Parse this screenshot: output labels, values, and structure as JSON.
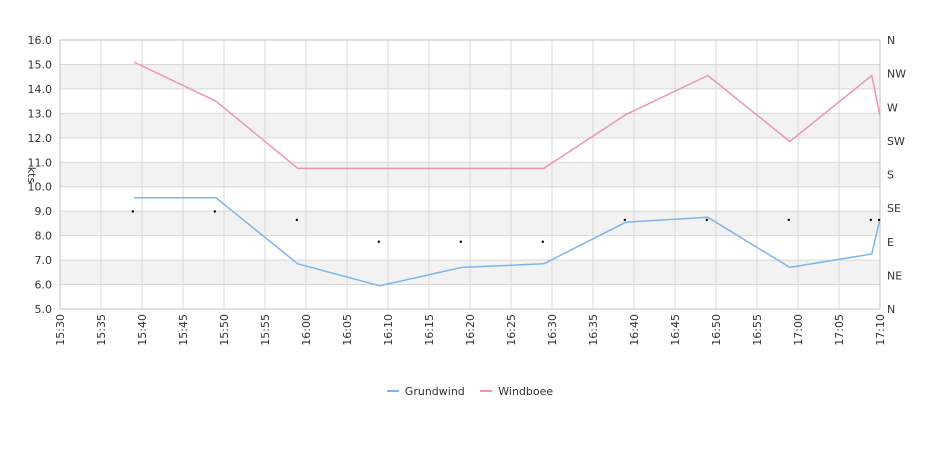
{
  "chart_data": {
    "type": "line",
    "x_ticks": [
      "15:30",
      "15:35",
      "15:40",
      "15:45",
      "15:50",
      "15:55",
      "16:00",
      "16:05",
      "16:10",
      "16:15",
      "16:20",
      "16:25",
      "16:30",
      "16:35",
      "16:40",
      "16:45",
      "16:50",
      "16:55",
      "17:00",
      "17:05",
      "17:10"
    ],
    "ylabel": "kts",
    "ylim": [
      5.0,
      16.0
    ],
    "y_ticks": [
      "5.0",
      "6.0",
      "7.0",
      "8.0",
      "9.0",
      "10.0",
      "11.0",
      "12.0",
      "13.0",
      "14.0",
      "15.0",
      "16.0"
    ],
    "y2_ticks": [
      "N",
      "NE",
      "E",
      "SE",
      "S",
      "SW",
      "W",
      "NW",
      "N"
    ],
    "grid": true,
    "legend_position": "bottom",
    "series": [
      {
        "name": "Grundwind",
        "color": "#7cb5ec",
        "points": [
          {
            "x": "15:39",
            "y": 9.55
          },
          {
            "x": "15:49",
            "y": 9.55
          },
          {
            "x": "15:59",
            "y": 6.85
          },
          {
            "x": "16:09",
            "y": 5.95
          },
          {
            "x": "16:19",
            "y": 6.7
          },
          {
            "x": "16:29",
            "y": 6.85
          },
          {
            "x": "16:39",
            "y": 8.55
          },
          {
            "x": "16:49",
            "y": 8.75
          },
          {
            "x": "16:59",
            "y": 6.7
          },
          {
            "x": "17:09",
            "y": 7.25
          },
          {
            "x": "17:10",
            "y": 8.7
          }
        ]
      },
      {
        "name": "Windboee",
        "color": "#f092b8",
        "points": [
          {
            "x": "15:39",
            "y": 15.1
          },
          {
            "x": "15:49",
            "y": 13.5
          },
          {
            "x": "15:59",
            "y": 10.75
          },
          {
            "x": "16:09",
            "y": 10.75
          },
          {
            "x": "16:19",
            "y": 10.75
          },
          {
            "x": "16:29",
            "y": 10.75
          },
          {
            "x": "16:39",
            "y": 12.95
          },
          {
            "x": "16:49",
            "y": 14.55
          },
          {
            "x": "16:59",
            "y": 11.85
          },
          {
            "x": "17:09",
            "y": 14.55
          },
          {
            "x": "17:10",
            "y": 12.9
          }
        ]
      },
      {
        "name": "",
        "type": "direction-markers",
        "color": "#000000",
        "axis": "y2",
        "points": [
          {
            "x": "15:39",
            "dir": "SE-"
          },
          {
            "x": "15:49",
            "dir": "SE-"
          },
          {
            "x": "15:59",
            "dir": "SE+"
          },
          {
            "x": "16:09",
            "dir": "E"
          },
          {
            "x": "16:19",
            "dir": "E"
          },
          {
            "x": "16:29",
            "dir": "E"
          },
          {
            "x": "16:39",
            "dir": "SE+"
          },
          {
            "x": "16:49",
            "dir": "SE+"
          },
          {
            "x": "16:59",
            "dir": "SE+"
          },
          {
            "x": "17:09",
            "dir": "SE+"
          },
          {
            "x": "17:10",
            "dir": "SE+"
          }
        ]
      }
    ],
    "colors": {
      "band": "#f2f2f2",
      "grid": "#d8d8d8",
      "axis": "#c0c0c0"
    }
  }
}
